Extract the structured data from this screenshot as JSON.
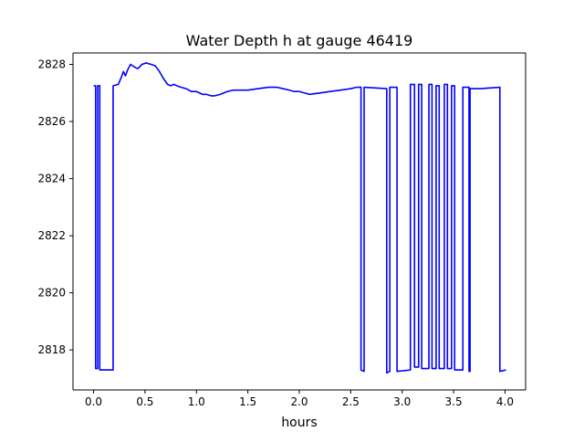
{
  "chart_data": {
    "type": "line",
    "title": "Water Depth h at gauge 46419",
    "xlabel": "hours",
    "ylabel": "",
    "xlim": [
      -0.2,
      4.2
    ],
    "ylim": [
      2816.6,
      2828.4
    ],
    "xticks": [
      0.0,
      0.5,
      1.0,
      1.5,
      2.0,
      2.5,
      3.0,
      3.5,
      4.0
    ],
    "xtick_labels": [
      "0.0",
      "0.5",
      "1.0",
      "1.5",
      "2.0",
      "2.5",
      "3.0",
      "3.5",
      "4.0"
    ],
    "yticks": [
      2818,
      2820,
      2822,
      2824,
      2826,
      2828
    ],
    "ytick_labels": [
      "2818",
      "2820",
      "2822",
      "2824",
      "2826",
      "2828"
    ],
    "grid": false,
    "series": [
      {
        "color": "#0000ff",
        "x": [
          0.0,
          0.02,
          0.02,
          0.04,
          0.04,
          0.06,
          0.06,
          0.19,
          0.19,
          0.24,
          0.27,
          0.29,
          0.31,
          0.33,
          0.36,
          0.4,
          0.43,
          0.47,
          0.51,
          0.56,
          0.6,
          0.64,
          0.68,
          0.72,
          0.75,
          0.78,
          0.81,
          0.85,
          0.9,
          0.95,
          1.0,
          1.03,
          1.06,
          1.1,
          1.14,
          1.18,
          1.23,
          1.3,
          1.36,
          1.42,
          1.5,
          1.6,
          1.7,
          1.78,
          1.84,
          1.9,
          1.95,
          2.0,
          2.05,
          2.1,
          2.2,
          2.3,
          2.4,
          2.5,
          2.56,
          2.6,
          2.6,
          2.63,
          2.63,
          2.85,
          2.85,
          2.88,
          2.88,
          2.95,
          2.95,
          3.08,
          3.08,
          3.12,
          3.12,
          3.16,
          3.16,
          3.19,
          3.19,
          3.26,
          3.26,
          3.29,
          3.29,
          3.33,
          3.33,
          3.36,
          3.36,
          3.41,
          3.41,
          3.44,
          3.44,
          3.48,
          3.48,
          3.51,
          3.51,
          3.59,
          3.59,
          3.65,
          3.65,
          3.66,
          3.66,
          3.76,
          3.76,
          3.95,
          3.95,
          4.01
        ],
        "y": [
          2827.25,
          2827.25,
          2817.35,
          2817.35,
          2827.25,
          2827.25,
          2817.3,
          2817.3,
          2827.25,
          2827.3,
          2827.55,
          2827.75,
          2827.6,
          2827.8,
          2828.0,
          2827.9,
          2827.85,
          2828.0,
          2828.05,
          2828.0,
          2827.95,
          2827.75,
          2827.5,
          2827.3,
          2827.25,
          2827.3,
          2827.25,
          2827.2,
          2827.15,
          2827.05,
          2827.05,
          2827.0,
          2826.95,
          2826.95,
          2826.9,
          2826.9,
          2826.95,
          2827.05,
          2827.1,
          2827.1,
          2827.1,
          2827.15,
          2827.2,
          2827.2,
          2827.15,
          2827.1,
          2827.05,
          2827.05,
          2827.0,
          2826.95,
          2827.0,
          2827.05,
          2827.1,
          2827.15,
          2827.2,
          2827.2,
          2817.3,
          2817.25,
          2827.2,
          2827.15,
          2817.2,
          2817.25,
          2827.2,
          2827.2,
          2817.25,
          2817.3,
          2827.3,
          2827.3,
          2817.4,
          2817.4,
          2827.3,
          2827.3,
          2817.35,
          2817.35,
          2827.3,
          2827.3,
          2817.35,
          2817.35,
          2827.25,
          2827.25,
          2817.35,
          2817.35,
          2827.3,
          2827.3,
          2817.35,
          2817.35,
          2827.25,
          2827.25,
          2817.3,
          2817.3,
          2827.2,
          2827.2,
          2817.25,
          2817.25,
          2827.15,
          2827.15,
          2827.15,
          2827.2,
          2817.25,
          2817.3
        ]
      }
    ]
  }
}
